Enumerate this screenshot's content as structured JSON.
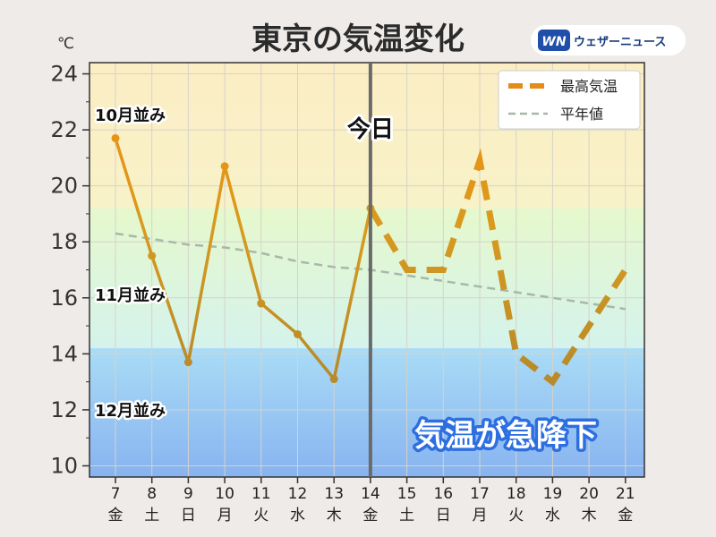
{
  "title": "東京の気温変化",
  "brand": {
    "logo_text": "WN",
    "name": "ウェザーニュース"
  },
  "colors": {
    "background": "#eeebe9",
    "max_temp_line": "#e68a1a",
    "normal_line": "#a8b8a8",
    "today_line": "#6a6a6a",
    "annotation_stroke": "#2d6fe0",
    "saturday": "#2f86d6",
    "sunday": "#d9302f"
  },
  "chart_data": {
    "type": "line",
    "unit_label": "℃",
    "ylim": [
      9.6,
      24.4
    ],
    "yticks": [
      10,
      12,
      14,
      16,
      18,
      20,
      22,
      24
    ],
    "grid": true,
    "legend_position": "top-right",
    "x_days": [
      "7",
      "8",
      "9",
      "10",
      "11",
      "12",
      "13",
      "14",
      "15",
      "16",
      "17",
      "18",
      "19",
      "20",
      "21"
    ],
    "x_weekdays": [
      "金",
      "土",
      "日",
      "月",
      "火",
      "水",
      "木",
      "金",
      "土",
      "日",
      "月",
      "火",
      "水",
      "木",
      "金"
    ],
    "x_day_types": [
      "weekday",
      "saturday",
      "sunday",
      "weekday",
      "weekday",
      "weekday",
      "weekday",
      "weekday",
      "saturday",
      "sunday",
      "weekday",
      "weekday",
      "weekday",
      "weekday",
      "weekday"
    ],
    "today_index": 7,
    "today_label": "今日",
    "series": [
      {
        "name": "最高気温",
        "values": [
          21.7,
          17.5,
          13.7,
          20.7,
          15.8,
          14.7,
          13.1,
          19.2,
          17.0,
          17.0,
          20.9,
          14.0,
          13.0,
          15.0,
          17.0
        ]
      },
      {
        "name": "平年値",
        "values": [
          18.3,
          18.1,
          17.9,
          17.8,
          17.6,
          17.3,
          17.1,
          17.0,
          16.8,
          16.6,
          16.4,
          16.2,
          16.0,
          15.8,
          15.6
        ]
      }
    ],
    "bands": [
      {
        "label": "10月並み",
        "from": 19.2,
        "to": 24.4,
        "color_top": "#fbedc4",
        "color_bottom": "#f8f2c8"
      },
      {
        "label": "11月並み",
        "from": 14.2,
        "to": 19.2,
        "color_top": "#e6f8cc",
        "color_bottom": "#d5f3ec"
      },
      {
        "label": "12月並み",
        "from": 9.6,
        "to": 14.2,
        "color_top": "#a9dcf6",
        "color_bottom": "#88b3f0"
      }
    ],
    "annotation": "気温が急降下"
  }
}
